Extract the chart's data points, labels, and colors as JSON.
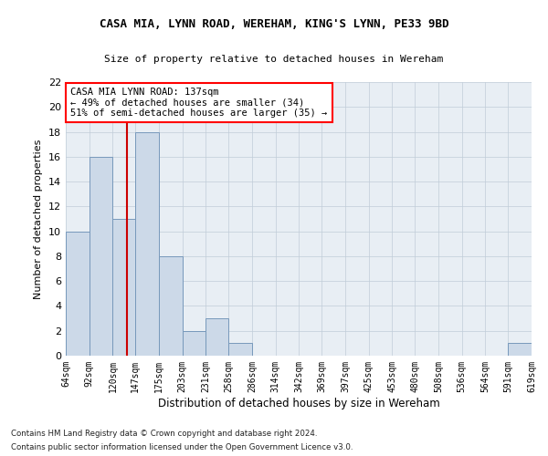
{
  "title": "CASA MIA, LYNN ROAD, WEREHAM, KING'S LYNN, PE33 9BD",
  "subtitle": "Size of property relative to detached houses in Wereham",
  "xlabel": "Distribution of detached houses by size in Wereham",
  "ylabel": "Number of detached properties",
  "bar_color": "#ccd9e8",
  "bar_edge_color": "#7799bb",
  "annotation_box_text": "CASA MIA LYNN ROAD: 137sqm\n← 49% of detached houses are smaller (34)\n51% of semi-detached houses are larger (35) →",
  "vline_x": 137,
  "vline_color": "#cc0000",
  "bins": [
    64,
    92,
    120,
    147,
    175,
    203,
    231,
    258,
    286,
    314,
    342,
    369,
    397,
    425,
    453,
    480,
    508,
    536,
    564,
    591,
    619
  ],
  "counts": [
    10,
    16,
    11,
    18,
    8,
    2,
    3,
    1,
    0,
    0,
    0,
    0,
    0,
    0,
    0,
    0,
    0,
    0,
    0,
    1
  ],
  "ylim": [
    0,
    22
  ],
  "yticks": [
    0,
    2,
    4,
    6,
    8,
    10,
    12,
    14,
    16,
    18,
    20,
    22
  ],
  "footnote1": "Contains HM Land Registry data © Crown copyright and database right 2024.",
  "footnote2": "Contains public sector information licensed under the Open Government Licence v3.0.",
  "bg_color": "#e8eef4",
  "grid_color": "#c0ccd8"
}
